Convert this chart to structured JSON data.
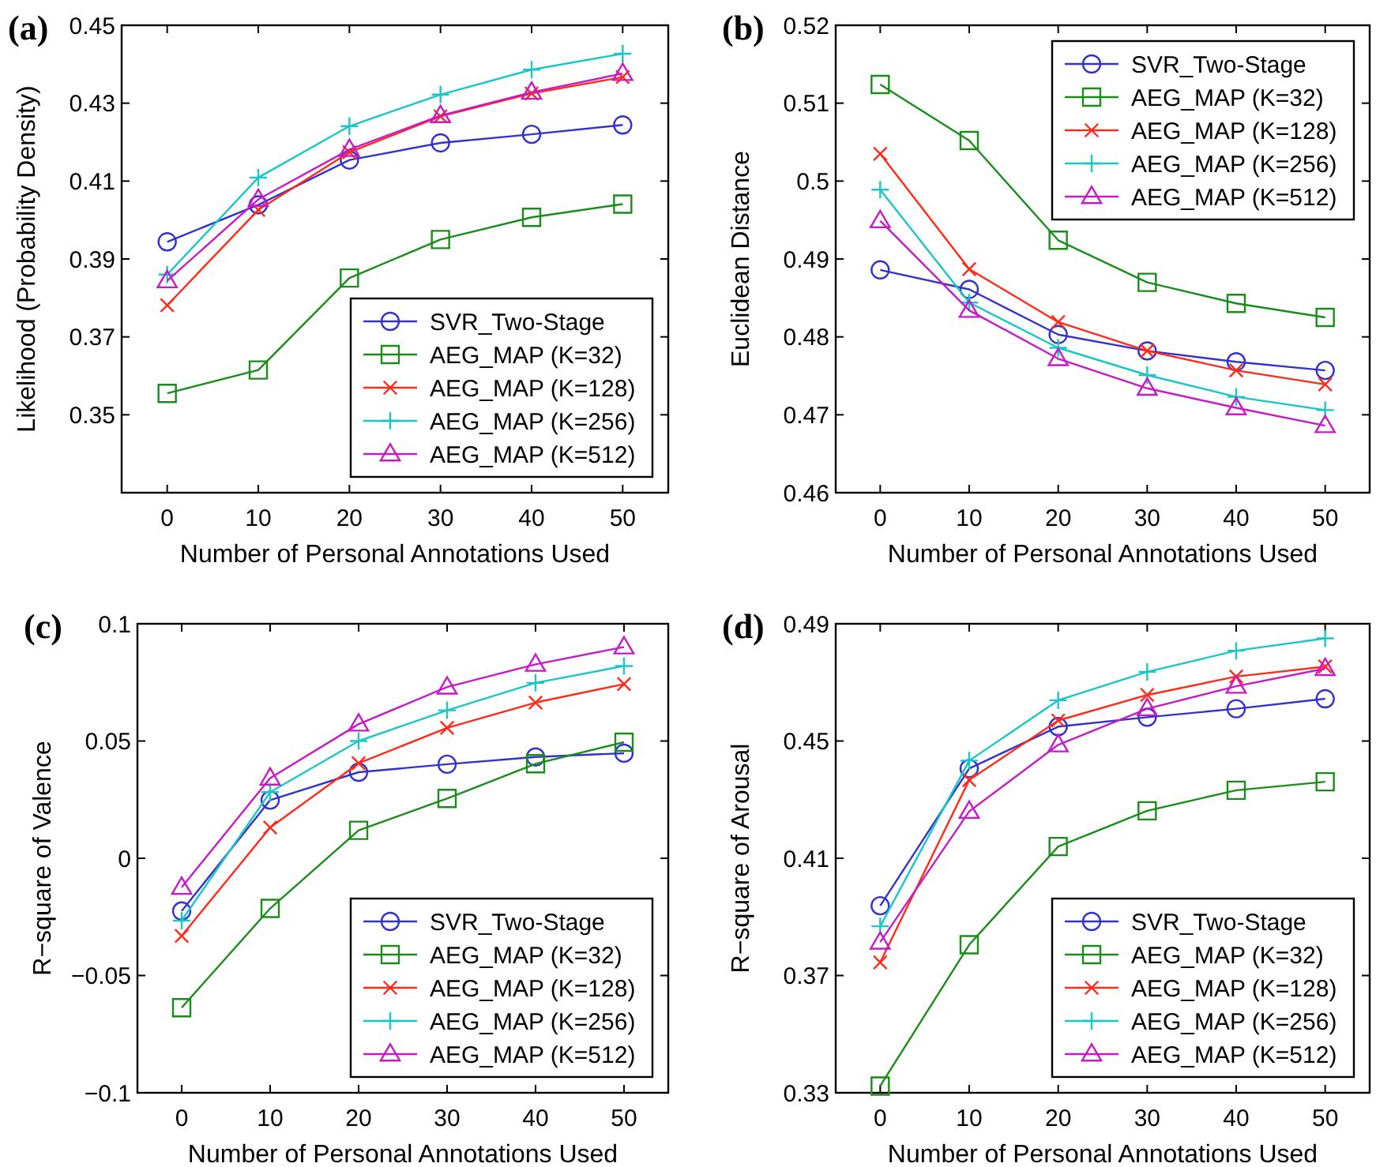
{
  "chart_data": [
    {
      "type": "line",
      "title": "(a)",
      "xlabel": "Number of Personal Annotations Used",
      "ylabel": "Likelihood (Probability Density)",
      "x": [
        0,
        10,
        20,
        30,
        40,
        50
      ],
      "xlim": [
        -5,
        55
      ],
      "xticks": [
        0,
        10,
        20,
        30,
        40,
        50
      ],
      "ylim": [
        0.33,
        0.45
      ],
      "yticks": [
        0.35,
        0.37,
        0.39,
        0.41,
        0.43,
        0.45
      ],
      "legend": "bottom right",
      "grid": false,
      "line_style": "solid",
      "series": [
        {
          "name": "SVR_Two-Stage",
          "color": "#3333cc",
          "marker": "circle",
          "values": [
            0.3944,
            0.4039,
            0.4154,
            0.4198,
            0.422,
            0.4244
          ]
        },
        {
          "name": "AEG_MAP (K=32)",
          "color": "#1a8c1a",
          "marker": "square",
          "values": [
            0.3555,
            0.3615,
            0.3851,
            0.395,
            0.4007,
            0.4041
          ]
        },
        {
          "name": "AEG_MAP (K=128)",
          "color": "#ff2a1a",
          "marker": "cross",
          "values": [
            0.3781,
            0.4026,
            0.4174,
            0.4266,
            0.4325,
            0.4367
          ]
        },
        {
          "name": "AEG_MAP (K=256)",
          "color": "#1ac6c6",
          "marker": "plus",
          "values": [
            0.386,
            0.4109,
            0.4241,
            0.4322,
            0.4386,
            0.4427
          ]
        },
        {
          "name": "AEG_MAP (K=512)",
          "color": "#c61ac6",
          "marker": "triangle",
          "values": [
            0.3844,
            0.4053,
            0.4181,
            0.4268,
            0.4328,
            0.4376
          ]
        }
      ]
    },
    {
      "type": "line",
      "title": "(b)",
      "xlabel": "Number of Personal Annotations Used",
      "ylabel": "Euclidean Distance",
      "x": [
        0,
        10,
        20,
        30,
        40,
        50
      ],
      "xlim": [
        -5,
        55
      ],
      "xticks": [
        0,
        10,
        20,
        30,
        40,
        50
      ],
      "ylim": [
        0.46,
        0.52
      ],
      "yticks": [
        0.46,
        0.47,
        0.48,
        0.49,
        0.5,
        0.51,
        0.52
      ],
      "legend": "top right",
      "grid": false,
      "line_style": "solid",
      "series": [
        {
          "name": "SVR_Two-Stage",
          "color": "#3333cc",
          "marker": "circle",
          "values": [
            0.4886,
            0.4861,
            0.4803,
            0.4782,
            0.4768,
            0.4757
          ]
        },
        {
          "name": "AEG_MAP (K=32)",
          "color": "#1a8c1a",
          "marker": "square",
          "values": [
            0.5124,
            0.5052,
            0.4924,
            0.487,
            0.4843,
            0.4825
          ]
        },
        {
          "name": "AEG_MAP (K=128)",
          "color": "#ff2a1a",
          "marker": "cross",
          "values": [
            0.5035,
            0.4887,
            0.4819,
            0.4782,
            0.4757,
            0.4739
          ]
        },
        {
          "name": "AEG_MAP (K=256)",
          "color": "#1ac6c6",
          "marker": "plus",
          "values": [
            0.4989,
            0.4844,
            0.4786,
            0.4751,
            0.4723,
            0.4706
          ]
        },
        {
          "name": "AEG_MAP (K=512)",
          "color": "#c61ac6",
          "marker": "triangle",
          "values": [
            0.4949,
            0.4834,
            0.4772,
            0.4734,
            0.4709,
            0.4686
          ]
        }
      ]
    },
    {
      "type": "line",
      "title": "(c)",
      "xlabel": "Number of Personal Annotations Used",
      "ylabel": "R−square of Valence",
      "x": [
        0,
        10,
        20,
        30,
        40,
        50
      ],
      "xlim": [
        -5,
        55
      ],
      "xticks": [
        0,
        10,
        20,
        30,
        40,
        50
      ],
      "ylim": [
        -0.1,
        0.1
      ],
      "yticks": [
        {
          "value": -0.1,
          "label": "−0.1"
        },
        {
          "value": -0.05,
          "label": "−0.05"
        },
        0,
        0.05,
        0.1
      ],
      "legend": "bottom right",
      "grid": false,
      "line_style": "solid",
      "series": [
        {
          "name": "SVR_Two-Stage",
          "color": "#3333cc",
          "marker": "circle",
          "values": [
            -0.0225,
            0.0248,
            0.0367,
            0.0401,
            0.0432,
            0.0448
          ]
        },
        {
          "name": "AEG_MAP (K=32)",
          "color": "#1a8c1a",
          "marker": "square",
          "values": [
            -0.0637,
            -0.0214,
            0.0119,
            0.0255,
            0.0403,
            0.0495
          ]
        },
        {
          "name": "AEG_MAP (K=128)",
          "color": "#ff2a1a",
          "marker": "cross",
          "values": [
            -0.0331,
            0.0131,
            0.0405,
            0.0556,
            0.0664,
            0.0743
          ]
        },
        {
          "name": "AEG_MAP (K=256)",
          "color": "#1ac6c6",
          "marker": "plus",
          "values": [
            -0.0266,
            0.0282,
            0.05,
            0.0631,
            0.0748,
            0.082
          ]
        },
        {
          "name": "AEG_MAP (K=512)",
          "color": "#c61ac6",
          "marker": "triangle",
          "values": [
            -0.0124,
            0.0342,
            0.0572,
            0.073,
            0.0827,
            0.0901
          ]
        }
      ]
    },
    {
      "type": "line",
      "title": "(d)",
      "xlabel": "Number of Personal Annotations Used",
      "ylabel": "R−square of Arousal",
      "x": [
        0,
        10,
        20,
        30,
        40,
        50
      ],
      "xlim": [
        -5,
        55
      ],
      "xticks": [
        0,
        10,
        20,
        30,
        40,
        50
      ],
      "ylim": [
        0.33,
        0.49
      ],
      "yticks": [
        0.33,
        0.37,
        0.41,
        0.45,
        0.49
      ],
      "legend": "bottom right",
      "grid": false,
      "line_style": "solid",
      "series": [
        {
          "name": "SVR_Two-Stage",
          "color": "#3333cc",
          "marker": "circle",
          "values": [
            0.3938,
            0.4406,
            0.4549,
            0.4581,
            0.461,
            0.4644
          ]
        },
        {
          "name": "AEG_MAP (K=32)",
          "color": "#1a8c1a",
          "marker": "square",
          "values": [
            0.3323,
            0.3805,
            0.414,
            0.4262,
            0.4332,
            0.4361
          ]
        },
        {
          "name": "AEG_MAP (K=128)",
          "color": "#ff2a1a",
          "marker": "cross",
          "values": [
            0.3745,
            0.4367,
            0.457,
            0.4657,
            0.472,
            0.4754
          ]
        },
        {
          "name": "AEG_MAP (K=256)",
          "color": "#1ac6c6",
          "marker": "plus",
          "values": [
            0.3868,
            0.4433,
            0.4639,
            0.4736,
            0.4808,
            0.485
          ]
        },
        {
          "name": "AEG_MAP (K=512)",
          "color": "#c61ac6",
          "marker": "triangle",
          "values": [
            0.3814,
            0.426,
            0.4487,
            0.461,
            0.4687,
            0.4747
          ]
        }
      ]
    }
  ]
}
